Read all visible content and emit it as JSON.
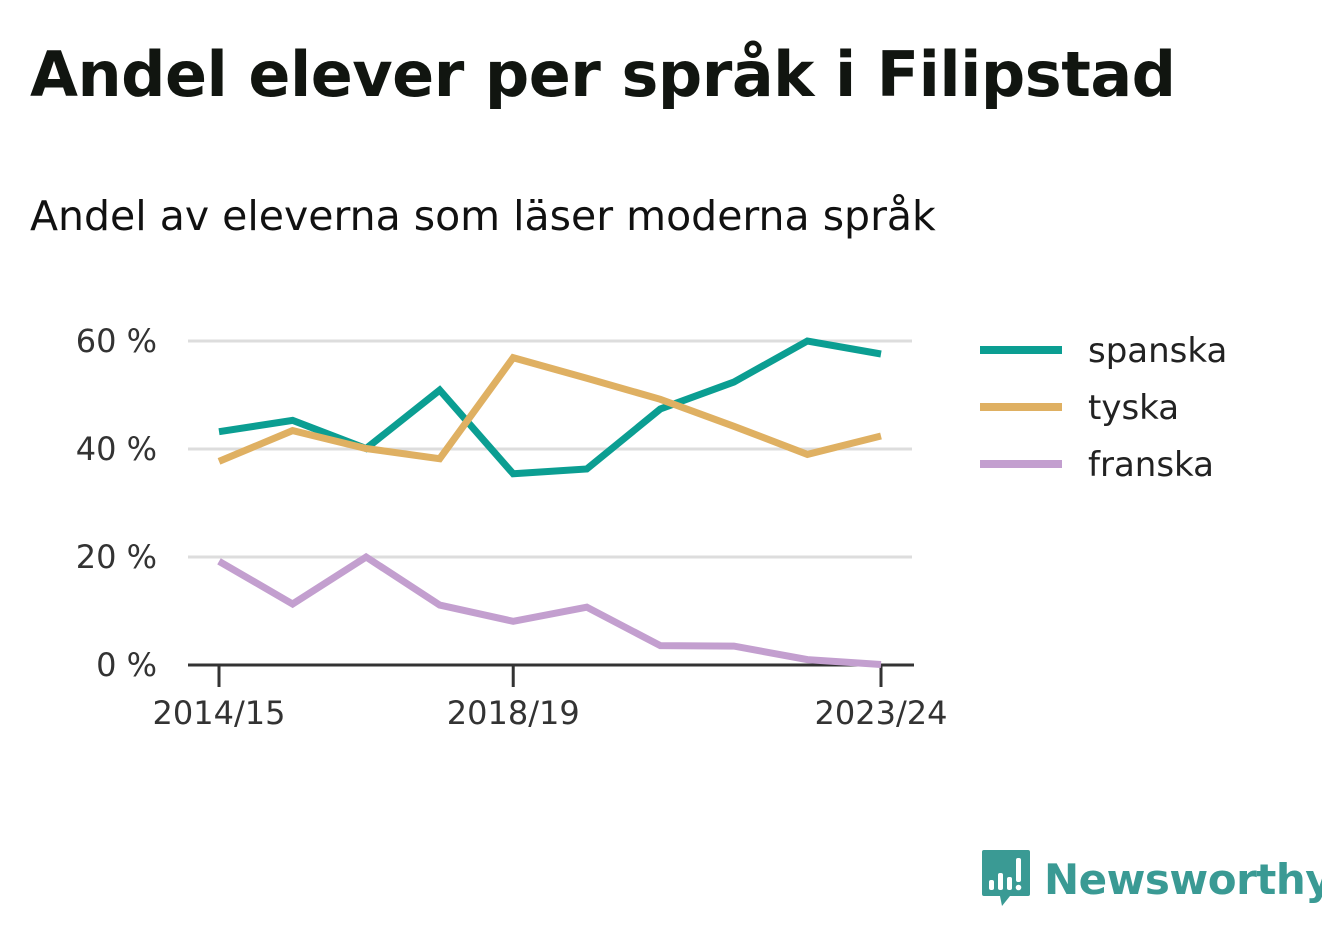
{
  "title": "Andel elever per språk i Filipstad",
  "subtitle": "Andel av eleverna som läser moderna språk",
  "logo": {
    "text": "Newsworthy",
    "color": "#3a9a94"
  },
  "chart_data": {
    "type": "line",
    "x": [
      "2014/15",
      "2015/16",
      "2016/17",
      "2017/18",
      "2018/19",
      "2019/20",
      "2020/21",
      "2021/22",
      "2022/23",
      "2023/24"
    ],
    "x_tick_labels": [
      "2014/15",
      "2018/19",
      "2023/24"
    ],
    "y_ticks": [
      0,
      20,
      40,
      60
    ],
    "y_tick_labels": [
      "0 %",
      "20 %",
      "40 %",
      "60 %"
    ],
    "ylim": [
      0,
      60
    ],
    "grid": true,
    "legend_position": "right",
    "series": [
      {
        "name": "spanska",
        "color": "#0b9e92",
        "values": [
          43.2,
          45.3,
          40.1,
          50.9,
          35.4,
          36.3,
          47.4,
          52.4,
          60.0,
          57.6
        ]
      },
      {
        "name": "tyska",
        "color": "#dfb062",
        "values": [
          37.7,
          43.4,
          40.1,
          38.2,
          56.9,
          53.1,
          49.2,
          44.2,
          39.0,
          42.4
        ]
      },
      {
        "name": "franska",
        "color": "#c39fcf",
        "values": [
          19.2,
          11.3,
          20.0,
          11.1,
          8.1,
          10.7,
          3.6,
          3.5,
          1.0,
          0.1
        ]
      }
    ]
  }
}
